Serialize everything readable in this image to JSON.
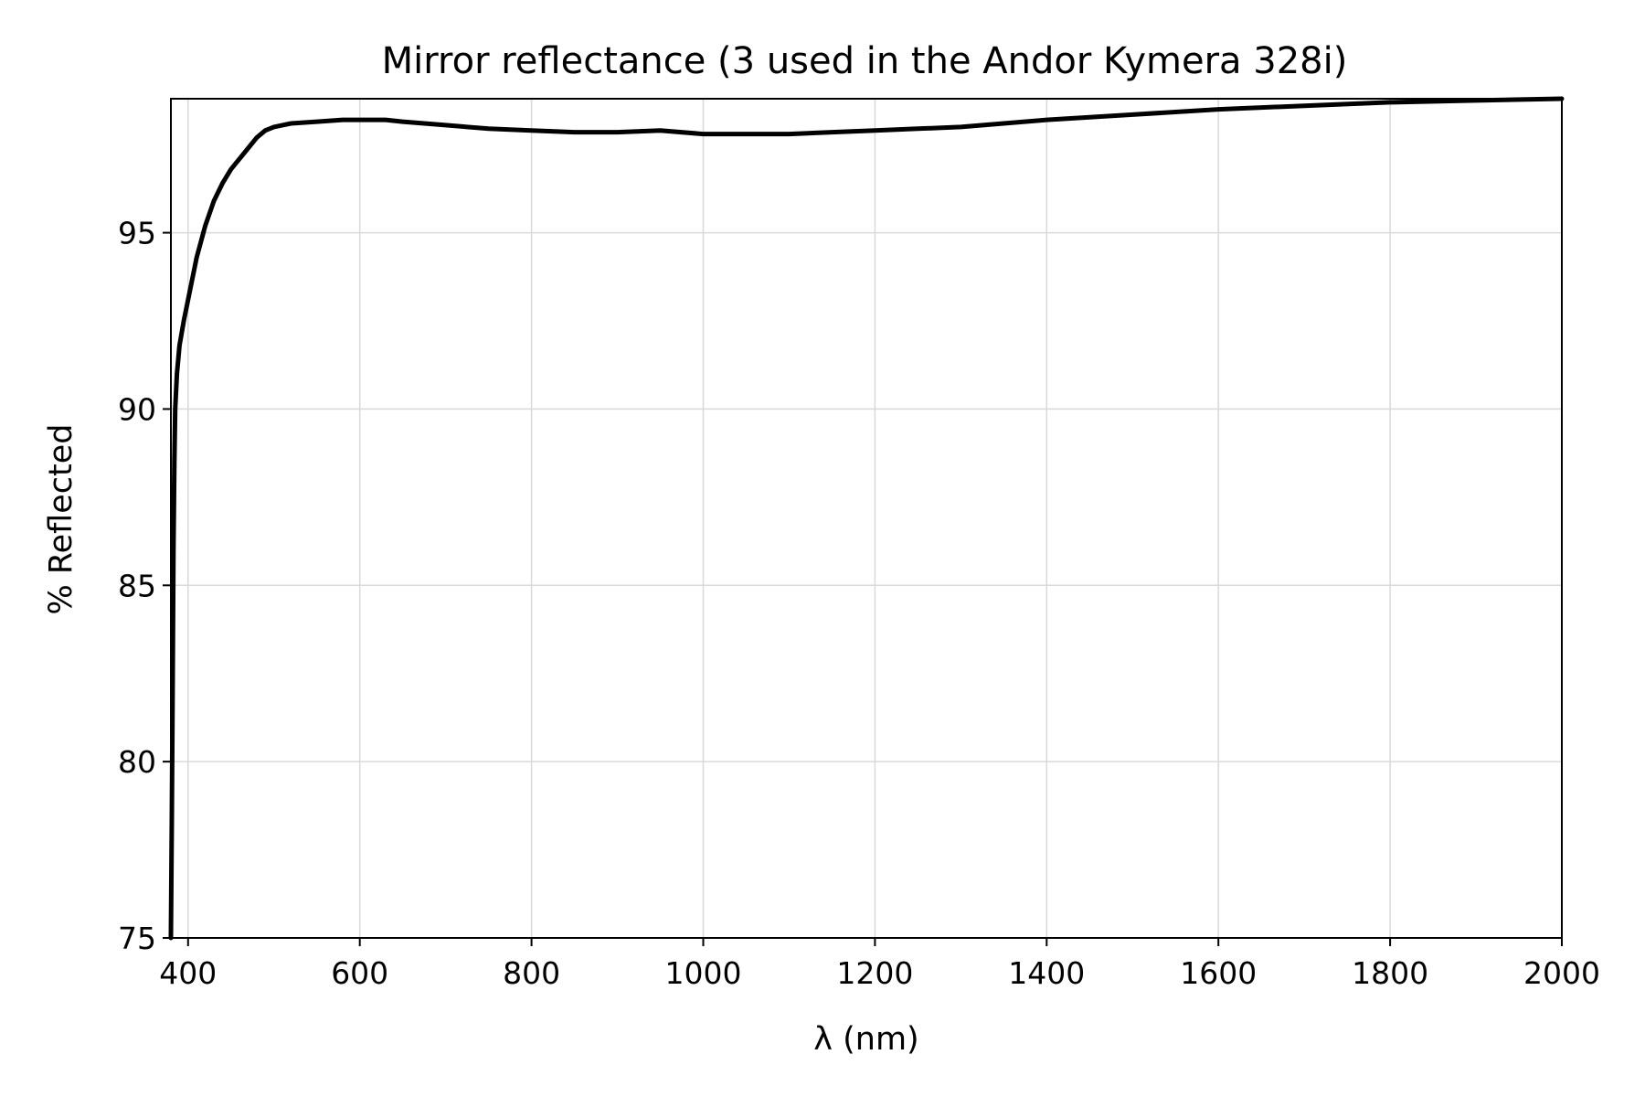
{
  "chart_data": {
    "type": "line",
    "title": "Mirror reflectance (3 used in the Andor Kymera 328i)",
    "xlabel": "λ (nm)",
    "ylabel": "% Reflected",
    "xlim": [
      380,
      2000
    ],
    "ylim": [
      75,
      98.8
    ],
    "xticks": [
      400,
      600,
      800,
      1000,
      1200,
      1400,
      1600,
      1800,
      2000
    ],
    "xtick_labels": [
      "400",
      "600",
      "800",
      "1000",
      "1200",
      "1400",
      "1600",
      "1800",
      "2000"
    ],
    "yticks": [
      75,
      80,
      85,
      90,
      95
    ],
    "ytick_labels": [
      "75",
      "80",
      "85",
      "90",
      "95"
    ],
    "grid": true,
    "line_color": "#000000",
    "series": [
      {
        "x": [
          380,
          381,
          382,
          383,
          384,
          385,
          387,
          390,
          395,
          400,
          410,
          420,
          430,
          440,
          450,
          460,
          470,
          480,
          490,
          500,
          510,
          520,
          550,
          580,
          600,
          630,
          650,
          700,
          750,
          800,
          850,
          900,
          950,
          1000,
          1050,
          1100,
          1150,
          1200,
          1250,
          1300,
          1400,
          1500,
          1600,
          1700,
          1800,
          1900,
          2000
        ],
        "y": [
          75,
          78,
          82,
          86,
          88.5,
          90,
          91,
          91.8,
          92.5,
          93.1,
          94.3,
          95.2,
          95.9,
          96.4,
          96.8,
          97.1,
          97.4,
          97.7,
          97.9,
          98.0,
          98.05,
          98.1,
          98.15,
          98.2,
          98.2,
          98.2,
          98.15,
          98.05,
          97.95,
          97.9,
          97.85,
          97.85,
          97.9,
          97.8,
          97.8,
          97.8,
          97.85,
          97.9,
          97.95,
          98.0,
          98.2,
          98.35,
          98.5,
          98.6,
          98.7,
          98.75,
          98.8
        ]
      }
    ]
  }
}
